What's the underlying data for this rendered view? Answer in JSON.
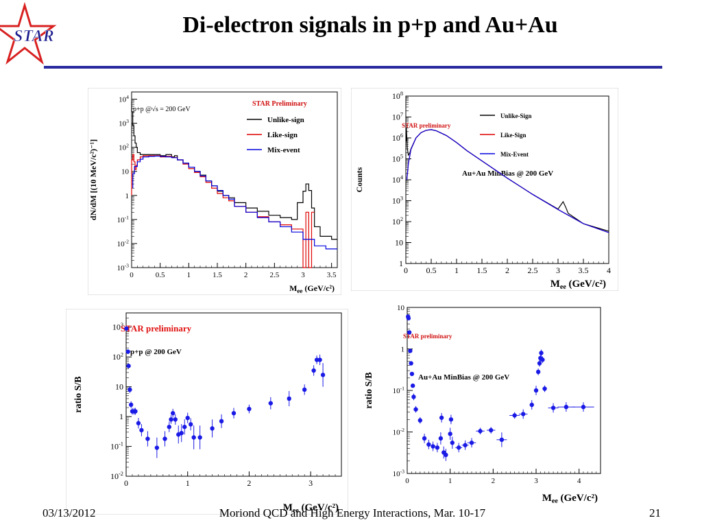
{
  "slide": {
    "title": "Di-electron signals in p+p and Au+Au",
    "logo_text": "STAR",
    "footer_date": "03/13/2012",
    "footer_conference": "Moriond QCD and High Energy Interactions, Mar. 10-17",
    "footer_page": "21",
    "accent_color": "#2a2aa0"
  },
  "chart_data": [
    {
      "type": "line",
      "id": "pp-mass",
      "ylabel": "dN/dM [(10 MeV/c²)⁻¹]",
      "xlabel": "M (GeV/c²)",
      "xlabel_sub": "ee",
      "xlim": [
        0,
        3.6
      ],
      "ylim": [
        0.001,
        20000
      ],
      "yscale": "log",
      "xticks": [
        "0",
        "0.5",
        "1",
        "1.5",
        "2",
        "2.5",
        "3",
        "3.5"
      ],
      "yticks": [
        "10⁻³",
        "10⁻²",
        "10⁻¹",
        "1",
        "10",
        "10²",
        "10³",
        "10⁴"
      ],
      "annotations": [
        "p+p @√s = 200 GeV",
        "STAR Preliminary"
      ],
      "legend": "top-right",
      "series": [
        {
          "name": "Unlike-sign",
          "color": "#000000",
          "x": [
            0.0,
            0.02,
            0.04,
            0.06,
            0.08,
            0.1,
            0.15,
            0.2,
            0.3,
            0.4,
            0.5,
            0.6,
            0.7,
            0.75,
            0.8,
            0.9,
            1.0,
            1.1,
            1.2,
            1.3,
            1.4,
            1.5,
            1.6,
            1.7,
            1.8,
            2.0,
            2.2,
            2.4,
            2.6,
            2.8,
            2.9,
            3.0,
            3.05,
            3.1,
            3.15,
            3.2,
            3.3,
            3.5,
            3.6
          ],
          "y": [
            8000,
            3000,
            800,
            300,
            150,
            100,
            60,
            50,
            50,
            50,
            50,
            45,
            50,
            40,
            45,
            30,
            22,
            15,
            10,
            7,
            4,
            2.5,
            1.5,
            1.0,
            0.8,
            0.5,
            0.3,
            0.22,
            0.15,
            0.12,
            0.1,
            0.5,
            1.5,
            3,
            1.6,
            0.3,
            0.05,
            0.02,
            0.015
          ]
        },
        {
          "name": "Like-sign",
          "color": "#e00000",
          "x": [
            0.0,
            0.02,
            0.04,
            0.06,
            0.08,
            0.1,
            0.15,
            0.2,
            0.3,
            0.4,
            0.5,
            0.6,
            0.7,
            0.8,
            0.9,
            1.0,
            1.1,
            1.2,
            1.3,
            1.4,
            1.5,
            1.6,
            1.7,
            1.8,
            2.0,
            2.2,
            2.4,
            2.6,
            2.8,
            3.0,
            3.05,
            3.1,
            3.15,
            3.2
          ],
          "y": [
            1,
            30,
            50,
            25,
            12,
            18,
            30,
            40,
            45,
            45,
            45,
            40,
            42,
            38,
            30,
            20,
            13,
            9,
            6,
            3.5,
            2,
            1.2,
            0.8,
            0.6,
            0.35,
            0.2,
            0.13,
            0.08,
            0.06,
            0.04,
            0.001,
            0.2,
            0.001,
            0.2
          ]
        },
        {
          "name": "Mix-event",
          "color": "#0000dd",
          "x": [
            0.02,
            0.05,
            0.1,
            0.15,
            0.2,
            0.3,
            0.4,
            0.5,
            0.6,
            0.7,
            0.8,
            0.9,
            1.0,
            1.1,
            1.2,
            1.3,
            1.4,
            1.5,
            1.6,
            1.7,
            1.8,
            2.0,
            2.2,
            2.4,
            2.6,
            2.8,
            3.0,
            3.2,
            3.4,
            3.6
          ],
          "y": [
            2,
            8,
            16,
            25,
            32,
            40,
            42,
            43,
            42,
            40,
            37,
            30,
            22,
            15,
            10,
            6.5,
            4,
            2.5,
            1.6,
            1.0,
            0.7,
            0.35,
            0.2,
            0.12,
            0.08,
            0.05,
            0.03,
            0.015,
            0.008,
            0.006
          ]
        }
      ]
    },
    {
      "type": "line",
      "id": "auau-mass",
      "ylabel": "Counts",
      "xlabel": "M (GeV/c²)",
      "xlabel_sub": "ee",
      "xlim": [
        0,
        4
      ],
      "ylim": [
        1,
        100000000
      ],
      "yscale": "log",
      "xticks": [
        "0",
        "0.5",
        "1",
        "1.5",
        "2",
        "2.5",
        "3",
        "3.5",
        "4"
      ],
      "yticks": [
        "1",
        "10",
        "10²",
        "10³",
        "10⁴",
        "10⁵",
        "10⁶",
        "10⁷",
        "10⁸"
      ],
      "annotations": [
        "STAR preliminary",
        "Au+Au MinBias @ 200 GeV"
      ],
      "legend": "top-right",
      "series": [
        {
          "name": "Unlike-Sign",
          "color": "#000000",
          "x": [
            0.005,
            0.01,
            0.02,
            0.03,
            0.05,
            0.08,
            0.1,
            0.2,
            0.3,
            0.4,
            0.5,
            0.6,
            0.8,
            1.0,
            1.2,
            1.5,
            2.0,
            2.5,
            3.0,
            3.05,
            3.1,
            3.15,
            3.2,
            3.5,
            4.0
          ],
          "y": [
            700000,
            3000000,
            1000000,
            300000,
            150000,
            200000,
            300000,
            1000000,
            1800000,
            2300000,
            2500000,
            2200000,
            1300000,
            600000,
            250000,
            80000,
            12000,
            2000,
            400,
            600,
            900,
            500,
            250,
            80,
            35
          ]
        },
        {
          "name": "Like-Sign",
          "color": "#e00000",
          "x": [
            0.02,
            0.05,
            0.08,
            0.1,
            0.2,
            0.3,
            0.4,
            0.5,
            0.6,
            0.8,
            1.0,
            1.2,
            1.5,
            2.0,
            2.5,
            3.0,
            3.5,
            4.0
          ],
          "y": [
            10000,
            60000,
            150000,
            280000,
            1000000,
            1800000,
            2300000,
            2500000,
            2200000,
            1300000,
            600000,
            250000,
            80000,
            12000,
            2000,
            380,
            80,
            30
          ]
        },
        {
          "name": "Mix-Event",
          "color": "#0000dd",
          "x": [
            0.02,
            0.05,
            0.08,
            0.1,
            0.2,
            0.3,
            0.4,
            0.5,
            0.6,
            0.8,
            1.0,
            1.2,
            1.5,
            2.0,
            2.5,
            3.0,
            3.5,
            4.0
          ],
          "y": [
            10000,
            60000,
            150000,
            280000,
            1000000,
            1800000,
            2300000,
            2500000,
            2200000,
            1300000,
            600000,
            250000,
            80000,
            12000,
            2000,
            380,
            80,
            30
          ]
        }
      ]
    },
    {
      "type": "scatter",
      "id": "pp-ratio",
      "ylabel": "ratio S/B",
      "xlabel": "M (GeV/c²)",
      "xlabel_sub": "ee",
      "xlim": [
        0,
        3.5
      ],
      "ylim": [
        0.01,
        3000
      ],
      "yscale": "log",
      "xticks": [
        "0",
        "1",
        "2",
        "3"
      ],
      "yticks": [
        "10⁻²",
        "10⁻¹",
        "1",
        "10",
        "10²",
        "10³"
      ],
      "annotations": [
        "STAR preliminary",
        "p+p @ 200 GeV"
      ],
      "color": "#1a1ae6",
      "x": [
        0.005,
        0.03,
        0.04,
        0.06,
        0.08,
        0.1,
        0.13,
        0.15,
        0.2,
        0.25,
        0.35,
        0.5,
        0.63,
        0.7,
        0.73,
        0.76,
        0.8,
        0.85,
        0.9,
        0.95,
        1.0,
        1.05,
        1.1,
        1.2,
        1.4,
        1.55,
        1.75,
        2.0,
        2.35,
        2.65,
        2.9,
        3.05,
        3.1,
        3.15,
        3.2
      ],
      "y": [
        900,
        150,
        50,
        8,
        2.5,
        1.5,
        1.5,
        1.5,
        0.6,
        0.35,
        0.18,
        0.09,
        0.18,
        0.45,
        0.8,
        1.3,
        0.8,
        0.25,
        0.28,
        0.45,
        0.9,
        0.55,
        0.2,
        0.2,
        0.4,
        0.7,
        1.3,
        1.8,
        2.8,
        4,
        8,
        35,
        80,
        80,
        25
      ],
      "yerr_factor": [
        1.2,
        1.2,
        1.2,
        1.3,
        1.3,
        1.3,
        1.3,
        1.3,
        1.5,
        1.6,
        1.8,
        2.2,
        1.8,
        1.5,
        1.4,
        1.4,
        1.5,
        2.0,
        2.0,
        1.8,
        1.5,
        1.6,
        2.5,
        2.5,
        2.0,
        1.7,
        1.5,
        1.4,
        1.6,
        1.8,
        1.5,
        1.5,
        1.4,
        1.5,
        2.5
      ]
    },
    {
      "type": "scatter",
      "id": "auau-ratio",
      "ylabel": "ratio S/B",
      "xlabel": "M (GeV/c²)",
      "xlabel_sub": "ee",
      "xlim": [
        0,
        4.5
      ],
      "ylim": [
        0.001,
        10
      ],
      "yscale": "log",
      "xticks": [
        "0",
        "1",
        "2",
        "3",
        "4"
      ],
      "yticks": [
        "10⁻³",
        "10⁻²",
        "10⁻¹",
        "1",
        "10"
      ],
      "annotations": [
        "STAR preliminary",
        "Au+Au MinBias @ 200 GeV"
      ],
      "color": "#1a1ae6",
      "x": [
        0.02,
        0.03,
        0.05,
        0.07,
        0.09,
        0.11,
        0.13,
        0.15,
        0.2,
        0.3,
        0.4,
        0.5,
        0.6,
        0.7,
        0.78,
        0.8,
        0.85,
        0.9,
        1.0,
        1.02,
        1.05,
        1.2,
        1.35,
        1.5,
        1.7,
        1.95,
        2.2,
        2.5,
        2.7,
        2.9,
        3.0,
        3.05,
        3.08,
        3.1,
        3.12,
        3.15,
        3.2,
        3.4,
        3.7,
        4.1
      ],
      "y": [
        6,
        5.5,
        2.5,
        0.9,
        0.45,
        0.25,
        0.13,
        0.07,
        0.035,
        0.019,
        0.007,
        0.005,
        0.0045,
        0.0042,
        0.007,
        0.022,
        0.0032,
        0.0028,
        0.009,
        0.02,
        0.0055,
        0.0042,
        0.0048,
        0.0055,
        0.0105,
        0.011,
        0.0065,
        0.025,
        0.027,
        0.045,
        0.1,
        0.28,
        0.45,
        0.6,
        0.8,
        0.55,
        0.11,
        0.038,
        0.04,
        0.04
      ],
      "xerr": [
        0,
        0,
        0,
        0,
        0,
        0,
        0,
        0,
        0,
        0,
        0,
        0,
        0,
        0,
        0,
        0,
        0,
        0,
        0,
        0,
        0,
        0.08,
        0.08,
        0.1,
        0.1,
        0.1,
        0.12,
        0.12,
        0.1,
        0.05,
        0,
        0,
        0,
        0,
        0,
        0,
        0,
        0.12,
        0.2,
        0.25
      ],
      "yerr_factor": [
        1.1,
        1.1,
        1.1,
        1.1,
        1.1,
        1.1,
        1.1,
        1.2,
        1.2,
        1.2,
        1.3,
        1.3,
        1.3,
        1.3,
        1.4,
        1.3,
        1.4,
        1.4,
        1.4,
        1.3,
        1.4,
        1.3,
        1.3,
        1.3,
        1.2,
        1.2,
        1.5,
        1.2,
        1.3,
        1.3,
        1.3,
        1.2,
        1.2,
        1.2,
        1.2,
        1.2,
        1.2,
        1.3,
        1.3,
        1.3
      ]
    }
  ]
}
